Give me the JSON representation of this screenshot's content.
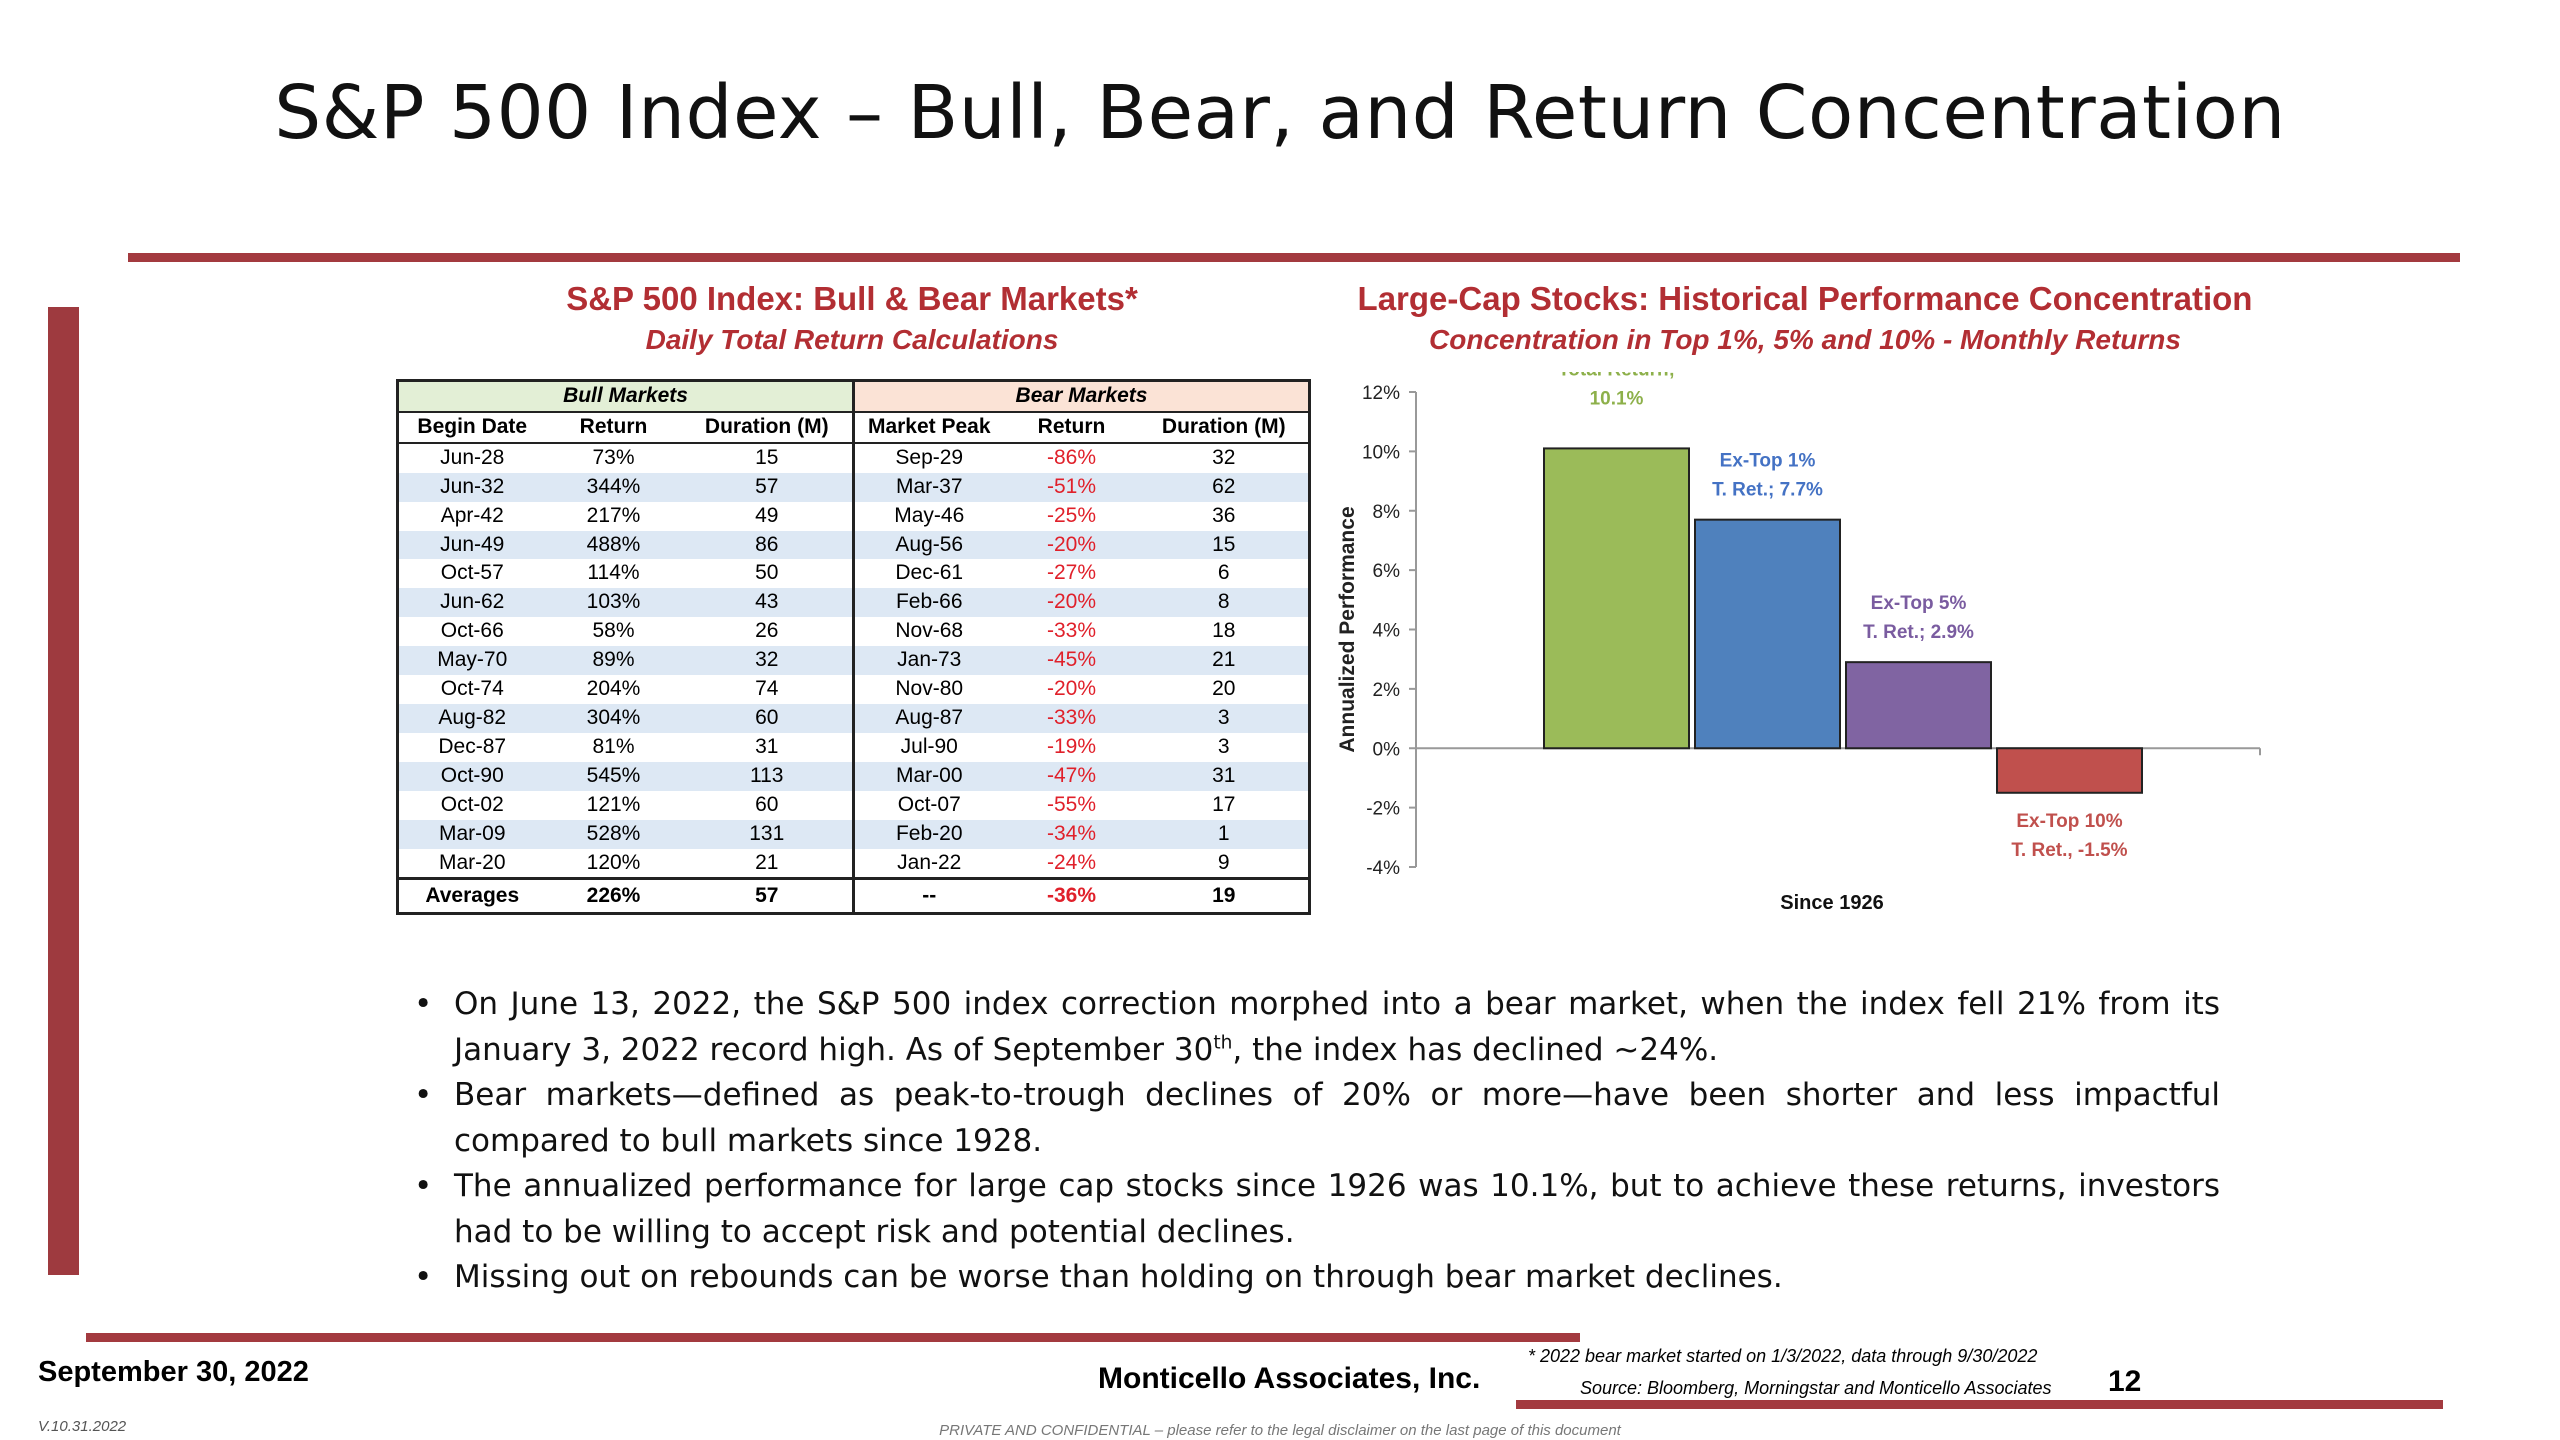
{
  "title": "S&P 500 Index – Bull, Bear, and Return Concentration",
  "left_panel": {
    "heading": "S&P 500 Index: Bull & Bear Markets*",
    "subheading": "Daily Total Return Calculations",
    "table": {
      "bull_group": "Bull Markets",
      "bear_group": "Bear Markets",
      "columns": [
        "Begin Date",
        "Return",
        "Duration (M)",
        "Market Peak",
        "Return",
        "Duration (M)"
      ],
      "rows": [
        [
          "Jun-28",
          "73%",
          "15",
          "Sep-29",
          "-86%",
          "32"
        ],
        [
          "Jun-32",
          "344%",
          "57",
          "Mar-37",
          "-51%",
          "62"
        ],
        [
          "Apr-42",
          "217%",
          "49",
          "May-46",
          "-25%",
          "36"
        ],
        [
          "Jun-49",
          "488%",
          "86",
          "Aug-56",
          "-20%",
          "15"
        ],
        [
          "Oct-57",
          "114%",
          "50",
          "Dec-61",
          "-27%",
          "6"
        ],
        [
          "Jun-62",
          "103%",
          "43",
          "Feb-66",
          "-20%",
          "8"
        ],
        [
          "Oct-66",
          "58%",
          "26",
          "Nov-68",
          "-33%",
          "18"
        ],
        [
          "May-70",
          "89%",
          "32",
          "Jan-73",
          "-45%",
          "21"
        ],
        [
          "Oct-74",
          "204%",
          "74",
          "Nov-80",
          "-20%",
          "20"
        ],
        [
          "Aug-82",
          "304%",
          "60",
          "Aug-87",
          "-33%",
          "3"
        ],
        [
          "Dec-87",
          "81%",
          "31",
          "Jul-90",
          "-19%",
          "3"
        ],
        [
          "Oct-90",
          "545%",
          "113",
          "Mar-00",
          "-47%",
          "31"
        ],
        [
          "Oct-02",
          "121%",
          "60",
          "Oct-07",
          "-55%",
          "17"
        ],
        [
          "Mar-09",
          "528%",
          "131",
          "Feb-20",
          "-34%",
          "1"
        ],
        [
          "Mar-20",
          "120%",
          "21",
          "Jan-22",
          "-24%",
          "9"
        ]
      ],
      "averages": [
        "Averages",
        "226%",
        "57",
        "--",
        "-36%",
        "19"
      ]
    }
  },
  "right_panel": {
    "heading": "Large-Cap Stocks: Historical Performance Concentration",
    "subheading": "Concentration in Top 1%, 5% and 10% - Monthly Returns"
  },
  "chart_data": {
    "type": "bar",
    "title": "Large-Cap Stocks: Historical Performance Concentration",
    "subtitle": "Concentration in Top 1%, 5% and 10% - Monthly Returns",
    "ylabel": "Annualized Performance",
    "xlabel": "Since 1926",
    "ylim": [
      -4,
      12
    ],
    "yticks": [
      "12%",
      "10%",
      "8%",
      "6%",
      "4%",
      "2%",
      "0%",
      "-2%",
      "-4%"
    ],
    "grid": false,
    "categories": [
      "Total Return",
      "Ex-Top 1%",
      "Ex-Top 5%",
      "Ex-Top 10%"
    ],
    "values": [
      10.1,
      7.7,
      2.9,
      -1.5
    ],
    "labels": [
      [
        "Total Return;",
        "10.1%"
      ],
      [
        "Ex-Top 1%",
        "T. Ret.; 7.7%"
      ],
      [
        "Ex-Top 5%",
        "T. Ret.; 2.9%"
      ],
      [
        "Ex-Top 10%",
        "T. Ret., -1.5%"
      ]
    ],
    "colors": [
      "#9bbb59",
      "#4f81bd",
      "#8064a2",
      "#c0504d"
    ],
    "label_colors": [
      "#8db04a",
      "#4472c4",
      "#7a5ca0",
      "#c0504d"
    ]
  },
  "bullets": [
    {
      "text": "On June 13, 2022, the S&P 500 index correction morphed into a bear market, when the index fell 21% from its January 3, 2022 record high.  As of September 30",
      "sup": "th",
      "tail": ", the index has declined ~24%."
    },
    {
      "text": "Bear markets—defined as peak-to-trough declines of 20% or more—have been shorter and less impactful compared to bull markets since 1928."
    },
    {
      "text": "The annualized performance for large cap stocks since 1926 was 10.1%, but to achieve these returns, investors had to be willing to accept risk and potential declines."
    },
    {
      "text": "Missing out on rebounds can be worse than holding on through bear market declines."
    }
  ],
  "footer": {
    "date": "September 30, 2022",
    "company": "Monticello Associates, Inc.",
    "note1": "* 2022 bear market started on 1/3/2022, data through 9/30/2022",
    "note2": "Source: Bloomberg, Morningstar and Monticello Associates",
    "page": "12",
    "version": "V.10.31.2022",
    "confidential": "PRIVATE AND CONFIDENTIAL – please refer to the legal disclaimer on the last page of this document"
  }
}
